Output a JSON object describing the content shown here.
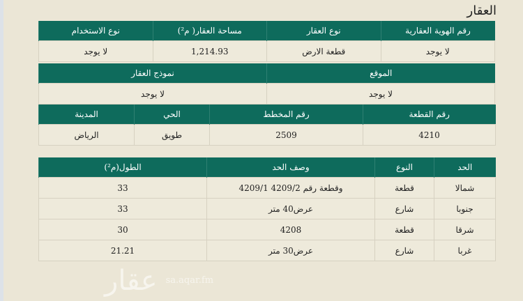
{
  "title": "العقار",
  "table1": {
    "headers": [
      "رقم الهوية العقارية",
      "نوع العقار",
      "مساحة العقار( م²)",
      "نوع الاستخدام"
    ],
    "values": [
      "لا يوجد",
      "قطعة الارض",
      "1,214.93",
      "لا يوجد"
    ]
  },
  "table2": {
    "headers": [
      "الموقع",
      "نموذج العقار"
    ],
    "values": [
      "لا يوجد",
      "لا يوجد"
    ]
  },
  "table3": {
    "headers": [
      "رقم القطعة",
      "رقم المخطط",
      "الحي",
      "المدينة"
    ],
    "values": [
      "4210",
      "2509",
      "طويق",
      "الرياض"
    ]
  },
  "boundaries": {
    "headers": [
      "الحد",
      "النوع",
      "وصف الحد",
      "الطول(م²)"
    ],
    "rows": [
      [
        "شمالا",
        "قطعة",
        "وقطعة رقم 4209/2 4209/1",
        "33"
      ],
      [
        "جنوبا",
        "شارع",
        "عرض40 متر",
        "33"
      ],
      [
        "شرقا",
        "قطعة",
        "4208",
        "30"
      ],
      [
        "غربا",
        "شارع",
        "عرض30 متر",
        "21.21"
      ]
    ]
  },
  "watermark": {
    "logo": "عقار",
    "url": "sa.aqar.fm"
  },
  "colors": {
    "header": "#0e6b5c",
    "background": "#ebe6d6"
  }
}
